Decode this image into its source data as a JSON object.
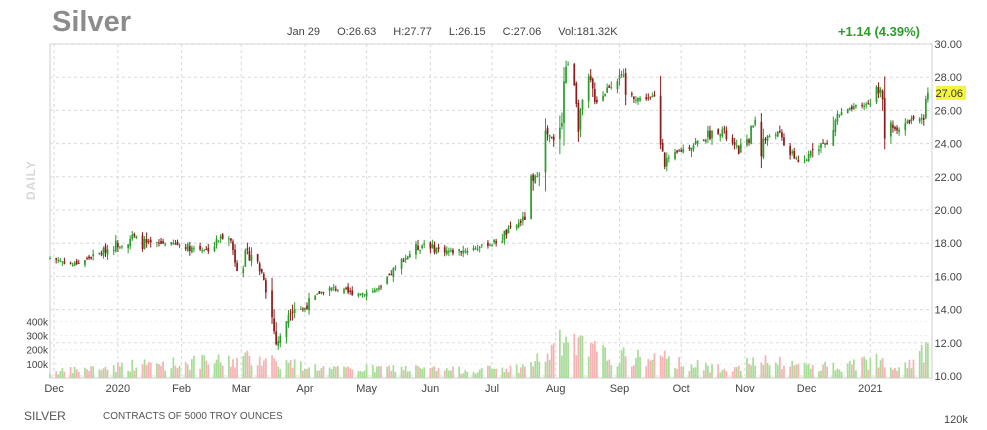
{
  "header": {
    "symbol": "Silver",
    "date": "Jan 29",
    "open": "O:26.63",
    "high": "H:27.77",
    "low": "L:26.15",
    "close": "C:27.06",
    "volume": "Vol:181.32K",
    "change": "+1.14 (4.39%)"
  },
  "period_label": "DAILY",
  "footer": {
    "symbol": "SILVER",
    "description": "CONTRACTS OF 5000 TROY OUNCES",
    "right_label": "120k"
  },
  "colors": {
    "up": "#2a9d2a",
    "down": "#8b1a1a",
    "volume_up": "#a8dc98",
    "volume_down": "#f5b3b3",
    "last_price_badge": "#f4f43c",
    "grid": "#d9d9d9"
  },
  "chart_data": {
    "type": "candlestick",
    "price_axis": {
      "ylim": [
        10,
        30
      ],
      "ticks": [
        "10.00",
        "12.00",
        "14.00",
        "16.00",
        "18.00",
        "20.00",
        "22.00",
        "24.00",
        "26.00",
        "28.00",
        "30.00"
      ]
    },
    "volume_axis": {
      "ylim": [
        0,
        480
      ],
      "ticks": [
        "100k",
        "200k",
        "300k",
        "400k"
      ]
    },
    "x_tick_labels": [
      "Dec",
      "2020",
      "Feb",
      "Mar",
      "Apr",
      "May",
      "Jun",
      "Jul",
      "Aug",
      "Sep",
      "Oct",
      "Nov",
      "Dec",
      "2021"
    ],
    "last_price": "27.06",
    "x_range": [
      "2019-11-29",
      "2021-01-31"
    ],
    "x_ticks_dates": [
      "2019-12-01",
      "2020-01-01",
      "2020-02-01",
      "2020-03-01",
      "2020-04-01",
      "2020-05-01",
      "2020-06-01",
      "2020-07-01",
      "2020-08-01",
      "2020-09-01",
      "2020-10-01",
      "2020-11-01",
      "2020-12-01",
      "2021-01-01"
    ],
    "close_waypoints": [
      [
        "2019-11-29",
        17.1
      ],
      [
        "2019-12-03",
        17.0
      ],
      [
        "2019-12-10",
        16.7
      ],
      [
        "2019-12-20",
        17.2
      ],
      [
        "2019-12-31",
        17.9
      ],
      [
        "2020-01-08",
        18.4
      ],
      [
        "2020-01-15",
        17.9
      ],
      [
        "2020-01-24",
        18.0
      ],
      [
        "2020-01-31",
        17.9
      ],
      [
        "2020-02-07",
        17.7
      ],
      [
        "2020-02-14",
        17.6
      ],
      [
        "2020-02-20",
        18.3
      ],
      [
        "2020-02-24",
        18.6
      ],
      [
        "2020-02-28",
        16.6
      ],
      [
        "2020-03-06",
        17.4
      ],
      [
        "2020-03-12",
        16.0
      ],
      [
        "2020-03-16",
        13.5
      ],
      [
        "2020-03-18",
        12.0
      ],
      [
        "2020-03-20",
        12.3
      ],
      [
        "2020-03-25",
        14.3
      ],
      [
        "2020-03-31",
        14.0
      ],
      [
        "2020-04-08",
        15.0
      ],
      [
        "2020-04-15",
        15.3
      ],
      [
        "2020-04-22",
        15.0
      ],
      [
        "2020-04-30",
        15.0
      ],
      [
        "2020-05-08",
        15.3
      ],
      [
        "2020-05-15",
        16.5
      ],
      [
        "2020-05-22",
        17.4
      ],
      [
        "2020-05-29",
        18.0
      ],
      [
        "2020-06-05",
        17.6
      ],
      [
        "2020-06-12",
        17.5
      ],
      [
        "2020-06-19",
        17.6
      ],
      [
        "2020-06-26",
        17.8
      ],
      [
        "2020-07-03",
        18.1
      ],
      [
        "2020-07-10",
        18.8
      ],
      [
        "2020-07-17",
        19.5
      ],
      [
        "2020-07-22",
        21.9
      ],
      [
        "2020-07-28",
        24.5
      ],
      [
        "2020-07-31",
        24.0
      ],
      [
        "2020-08-04",
        26.0
      ],
      [
        "2020-08-06",
        28.9
      ],
      [
        "2020-08-10",
        28.0
      ],
      [
        "2020-08-12",
        25.5
      ],
      [
        "2020-08-17",
        27.6
      ],
      [
        "2020-08-21",
        26.6
      ],
      [
        "2020-08-28",
        27.6
      ],
      [
        "2020-09-01",
        28.6
      ],
      [
        "2020-09-04",
        27.0
      ],
      [
        "2020-09-11",
        26.7
      ],
      [
        "2020-09-18",
        26.8
      ],
      [
        "2020-09-23",
        23.0
      ],
      [
        "2020-09-25",
        23.0
      ],
      [
        "2020-09-30",
        23.5
      ],
      [
        "2020-10-07",
        24.0
      ],
      [
        "2020-10-14",
        24.5
      ],
      [
        "2020-10-21",
        24.8
      ],
      [
        "2020-10-28",
        23.5
      ],
      [
        "2020-11-03",
        24.2
      ],
      [
        "2020-11-06",
        25.5
      ],
      [
        "2020-11-09",
        24.0
      ],
      [
        "2020-11-16",
        24.8
      ],
      [
        "2020-11-23",
        23.5
      ],
      [
        "2020-11-30",
        22.6
      ],
      [
        "2020-12-04",
        24.0
      ],
      [
        "2020-12-11",
        24.0
      ],
      [
        "2020-12-16",
        25.7
      ],
      [
        "2020-12-21",
        26.0
      ],
      [
        "2020-12-31",
        26.4
      ],
      [
        "2021-01-06",
        27.4
      ],
      [
        "2021-01-08",
        24.8
      ],
      [
        "2021-01-15",
        24.9
      ],
      [
        "2021-01-22",
        25.5
      ],
      [
        "2021-01-27",
        25.3
      ],
      [
        "2021-01-29",
        27.06
      ]
    ],
    "volume_waypoints": [
      [
        "2019-11-29",
        40
      ],
      [
        "2020-01-08",
        90
      ],
      [
        "2020-02-24",
        120
      ],
      [
        "2020-03-12",
        150
      ],
      [
        "2020-03-20",
        110
      ],
      [
        "2020-04-15",
        60
      ],
      [
        "2020-05-15",
        70
      ],
      [
        "2020-06-15",
        55
      ],
      [
        "2020-07-15",
        70
      ],
      [
        "2020-07-28",
        160
      ],
      [
        "2020-08-06",
        270
      ],
      [
        "2020-08-12",
        220
      ],
      [
        "2020-08-28",
        150
      ],
      [
        "2020-09-23",
        130
      ],
      [
        "2020-10-15",
        70
      ],
      [
        "2020-11-09",
        110
      ],
      [
        "2020-11-30",
        90
      ],
      [
        "2020-12-21",
        80
      ],
      [
        "2021-01-06",
        140
      ],
      [
        "2021-01-15",
        90
      ],
      [
        "2021-01-29",
        190
      ]
    ]
  }
}
